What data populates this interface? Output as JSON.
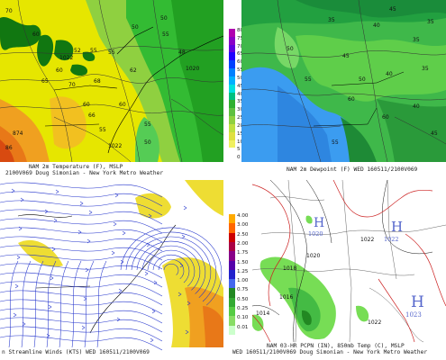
{
  "panels": {
    "temperature": {
      "caption_line1": "NAM 2m Temperature (F), MSLP",
      "caption_line2": "2100V069 Doug Simonian - New York Metro Weather",
      "contour_labels": [
        "70",
        "52",
        "1022",
        "60",
        "55",
        "65",
        "70",
        "55",
        "68",
        "50",
        "50",
        "55",
        "60",
        "60",
        "62",
        "1020",
        "48",
        "55",
        "50",
        "66",
        "874",
        "86",
        "1022",
        "60",
        "55"
      ]
    },
    "dewpoint": {
      "caption": "NAM 2m Dewpoint (F)  WED 160511/2100V069",
      "colorbar_labels": [
        "80",
        "75",
        "70",
        "65",
        "60",
        "55",
        "50",
        "45",
        "40",
        "35",
        "30",
        "25",
        "20",
        "15",
        "10",
        "5",
        "0"
      ],
      "contour_labels": [
        "45",
        "40",
        "35",
        "35",
        "50",
        "45",
        "40",
        "35",
        "55",
        "60",
        "60",
        "55",
        "50",
        "40",
        "45",
        "35"
      ]
    },
    "streamline": {
      "caption": "n Streamline Winds (KTS)  WED 160511/2100V069"
    },
    "precip": {
      "caption_line1": "NAM 03-HR PCPN (IN), 850mb Temp (C), MSLP",
      "caption_line2": "WED 160511/2100V069 Doug Simonian - New York Metro Weather",
      "colorbar_labels": [
        "4.00",
        "3.00",
        "2.50",
        "2.00",
        "1.75",
        "1.50",
        "1.25",
        "1.00",
        "0.75",
        "0.50",
        "0.25",
        "0.10",
        "0.01"
      ],
      "highs": [
        {
          "letter": "H",
          "value": "1020"
        },
        {
          "letter": "H",
          "value": "1022"
        },
        {
          "letter": "H",
          "value": "1023"
        }
      ],
      "isobar_labels": [
        "1022",
        "1020",
        "1018",
        "1016",
        "1014",
        "1022"
      ]
    }
  },
  "colors": {
    "temp_yellow": "#e8e800",
    "temp_green": "#33cc33",
    "temp_orange": "#ee8800",
    "dew_blue": "#3399ff",
    "dew_green": "#55cc44",
    "stream_line": "#2233cc",
    "precip_green": "#66dd44",
    "isotherm_red": "#cc2222"
  }
}
